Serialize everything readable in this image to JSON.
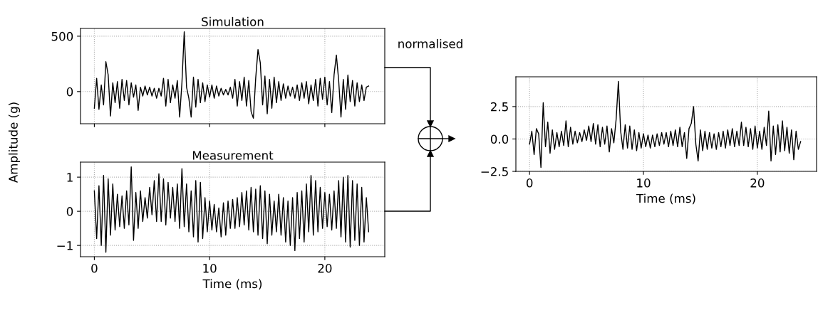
{
  "chart_data": [
    {
      "type": "line",
      "title": "Simulation",
      "ylabel": "Amplitude (g)",
      "annotations": [
        "normalised"
      ],
      "xlim": [
        -1.2,
        25.2
      ],
      "ylim": [
        -290,
        570
      ],
      "xticks": [
        0,
        10,
        20
      ],
      "yticks": [
        0,
        500
      ],
      "grid": true,
      "tick_labels": "y",
      "x": [
        0.0,
        0.2,
        0.4,
        0.6,
        0.8,
        1.0,
        1.2,
        1.4,
        1.6,
        1.8,
        2.0,
        2.2,
        2.4,
        2.6,
        2.8,
        3.0,
        3.2,
        3.4,
        3.6,
        3.8,
        4.0,
        4.2,
        4.4,
        4.6,
        4.8,
        5.0,
        5.2,
        5.4,
        5.6,
        5.8,
        6.0,
        6.2,
        6.4,
        6.6,
        6.8,
        7.0,
        7.2,
        7.4,
        7.6,
        7.8,
        8.0,
        8.2,
        8.4,
        8.6,
        8.8,
        9.0,
        9.2,
        9.4,
        9.6,
        9.8,
        10.0,
        10.2,
        10.4,
        10.6,
        10.8,
        11.0,
        11.2,
        11.4,
        11.6,
        11.8,
        12.0,
        12.2,
        12.4,
        12.6,
        12.8,
        13.0,
        13.2,
        13.4,
        13.6,
        13.8,
        14.0,
        14.2,
        14.4,
        14.6,
        14.8,
        15.0,
        15.2,
        15.4,
        15.6,
        15.8,
        16.0,
        16.2,
        16.4,
        16.6,
        16.8,
        17.0,
        17.2,
        17.4,
        17.6,
        17.8,
        18.0,
        18.2,
        18.4,
        18.6,
        18.8,
        19.0,
        19.2,
        19.4,
        19.6,
        19.8,
        20.0,
        20.2,
        20.4,
        20.6,
        20.8,
        21.0,
        21.2,
        21.4,
        21.6,
        21.8,
        22.0,
        22.2,
        22.4,
        22.6,
        22.8,
        23.0,
        23.2,
        23.4,
        23.6,
        23.8
      ],
      "series": [
        {
          "color": "#000000",
          "values": [
            -150,
            120,
            -160,
            60,
            -120,
            270,
            150,
            -220,
            80,
            -100,
            90,
            -150,
            110,
            -80,
            100,
            -120,
            80,
            -50,
            60,
            -170,
            40,
            -40,
            50,
            -30,
            40,
            -40,
            30,
            -60,
            30,
            -40,
            120,
            -130,
            110,
            -100,
            60,
            -60,
            100,
            -230,
            80,
            540,
            40,
            -60,
            -230,
            130,
            -140,
            110,
            -100,
            80,
            -90,
            60,
            -50,
            60,
            -60,
            50,
            -40,
            30,
            -30,
            20,
            -30,
            40,
            -60,
            110,
            -130,
            90,
            -80,
            130,
            -130,
            100,
            -180,
            -240,
            120,
            380,
            260,
            -120,
            140,
            -200,
            110,
            -150,
            130,
            -100,
            90,
            -80,
            70,
            -60,
            50,
            -40,
            40,
            -60,
            60,
            -80,
            80,
            -60,
            90,
            -110,
            60,
            -80,
            110,
            -130,
            120,
            -70,
            130,
            -120,
            90,
            -190,
            150,
            330,
            100,
            -230,
            110,
            -160,
            150,
            -90,
            100,
            -130,
            80,
            -90,
            60,
            -80,
            40,
            50
          ]
        }
      ]
    },
    {
      "type": "line",
      "title": "Measurement",
      "xlabel": "Time (ms)",
      "xlim": [
        -1.2,
        25.2
      ],
      "ylim": [
        -1.33,
        1.44
      ],
      "xticks": [
        0,
        10,
        20
      ],
      "yticks": [
        {
          "value": -1,
          "label": "−1"
        },
        0,
        1
      ],
      "grid": true,
      "x": [
        0.0,
        0.2,
        0.4,
        0.6,
        0.8,
        1.0,
        1.2,
        1.4,
        1.6,
        1.8,
        2.0,
        2.2,
        2.4,
        2.6,
        2.8,
        3.0,
        3.2,
        3.4,
        3.6,
        3.8,
        4.0,
        4.2,
        4.4,
        4.6,
        4.8,
        5.0,
        5.2,
        5.4,
        5.6,
        5.8,
        6.0,
        6.2,
        6.4,
        6.6,
        6.8,
        7.0,
        7.2,
        7.4,
        7.6,
        7.8,
        8.0,
        8.2,
        8.4,
        8.6,
        8.8,
        9.0,
        9.2,
        9.4,
        9.6,
        9.8,
        10.0,
        10.2,
        10.4,
        10.6,
        10.8,
        11.0,
        11.2,
        11.4,
        11.6,
        11.8,
        12.0,
        12.2,
        12.4,
        12.6,
        12.8,
        13.0,
        13.2,
        13.4,
        13.6,
        13.8,
        14.0,
        14.2,
        14.4,
        14.6,
        14.8,
        15.0,
        15.2,
        15.4,
        15.6,
        15.8,
        16.0,
        16.2,
        16.4,
        16.6,
        16.8,
        17.0,
        17.2,
        17.4,
        17.6,
        17.8,
        18.0,
        18.2,
        18.4,
        18.6,
        18.8,
        19.0,
        19.2,
        19.4,
        19.6,
        19.8,
        20.0,
        20.2,
        20.4,
        20.6,
        20.8,
        21.0,
        21.2,
        21.4,
        21.6,
        21.8,
        22.0,
        22.2,
        22.4,
        22.6,
        22.8,
        23.0,
        23.2,
        23.4,
        23.6,
        23.8
      ],
      "series": [
        {
          "color": "#000000",
          "values": [
            0.6,
            -0.8,
            0.75,
            -1.0,
            1.05,
            -1.2,
            0.95,
            -0.7,
            0.8,
            -0.55,
            0.5,
            -0.45,
            0.45,
            -0.5,
            0.6,
            -0.4,
            1.3,
            -0.85,
            0.55,
            -0.5,
            0.6,
            -0.3,
            0.4,
            -0.2,
            0.7,
            -0.1,
            0.9,
            -0.3,
            1.1,
            -0.3,
            0.95,
            -0.4,
            0.85,
            -0.2,
            0.7,
            -0.3,
            0.8,
            -0.5,
            1.25,
            -0.45,
            0.8,
            -0.6,
            0.6,
            -0.75,
            0.9,
            -0.9,
            0.85,
            -0.8,
            0.4,
            -0.6,
            0.3,
            -0.55,
            0.2,
            -0.6,
            0.1,
            -0.75,
            0.25,
            -0.7,
            0.3,
            -0.5,
            0.35,
            -0.5,
            0.4,
            -0.45,
            0.55,
            -0.4,
            0.6,
            -0.55,
            0.7,
            -0.6,
            0.65,
            -0.7,
            0.75,
            -0.8,
            0.6,
            -0.95,
            0.5,
            -0.7,
            0.3,
            -0.6,
            0.5,
            -0.7,
            0.4,
            -0.9,
            0.3,
            -1.0,
            0.4,
            -1.15,
            0.55,
            -0.8,
            0.6,
            -0.9,
            0.8,
            -0.6,
            1.05,
            -0.7,
            0.9,
            -0.6,
            0.7,
            -0.5,
            0.55,
            -0.45,
            0.5,
            -0.55,
            0.6,
            -0.5,
            0.9,
            -0.75,
            1.0,
            -0.9,
            1.05,
            -1.05,
            0.9,
            -0.85,
            0.8,
            -1.0,
            0.7,
            -0.9,
            0.4,
            -0.6
          ]
        }
      ]
    },
    {
      "type": "line",
      "xlabel": "Time (ms)",
      "xlim": [
        -1.2,
        25.2
      ],
      "ylim": [
        -2.5,
        4.8
      ],
      "xticks": [
        0,
        10,
        20
      ],
      "yticks": [
        {
          "value": -2.5,
          "label": "−2.5"
        },
        {
          "value": 0,
          "label": "0.0"
        },
        {
          "value": 2.5,
          "label": "2.5"
        }
      ],
      "grid": true,
      "x": [
        0.0,
        0.2,
        0.4,
        0.6,
        0.8,
        1.0,
        1.2,
        1.4,
        1.6,
        1.8,
        2.0,
        2.2,
        2.4,
        2.6,
        2.8,
        3.0,
        3.2,
        3.4,
        3.6,
        3.8,
        4.0,
        4.2,
        4.4,
        4.6,
        4.8,
        5.0,
        5.2,
        5.4,
        5.6,
        5.8,
        6.0,
        6.2,
        6.4,
        6.6,
        6.8,
        7.0,
        7.2,
        7.4,
        7.6,
        7.8,
        8.0,
        8.2,
        8.4,
        8.6,
        8.8,
        9.0,
        9.2,
        9.4,
        9.6,
        9.8,
        10.0,
        10.2,
        10.4,
        10.6,
        10.8,
        11.0,
        11.2,
        11.4,
        11.6,
        11.8,
        12.0,
        12.2,
        12.4,
        12.6,
        12.8,
        13.0,
        13.2,
        13.4,
        13.6,
        13.8,
        14.0,
        14.2,
        14.4,
        14.6,
        14.8,
        15.0,
        15.2,
        15.4,
        15.6,
        15.8,
        16.0,
        16.2,
        16.4,
        16.6,
        16.8,
        17.0,
        17.2,
        17.4,
        17.6,
        17.8,
        18.0,
        18.2,
        18.4,
        18.6,
        18.8,
        19.0,
        19.2,
        19.4,
        19.6,
        19.8,
        20.0,
        20.2,
        20.4,
        20.6,
        20.8,
        21.0,
        21.2,
        21.4,
        21.6,
        21.8,
        22.0,
        22.2,
        22.4,
        22.6,
        22.8,
        23.0,
        23.2,
        23.4,
        23.6,
        23.8
      ],
      "series": [
        {
          "color": "#000000",
          "values": [
            -0.4,
            0.6,
            -1.2,
            0.8,
            0.4,
            -2.2,
            2.8,
            -0.6,
            1.3,
            -1.1,
            0.7,
            -0.8,
            0.5,
            -0.6,
            0.6,
            -0.5,
            1.4,
            -0.6,
            0.9,
            -0.4,
            0.6,
            -0.3,
            0.5,
            -0.2,
            0.7,
            -0.1,
            1.0,
            -0.2,
            1.2,
            -0.4,
            1.1,
            -0.6,
            0.9,
            -0.4,
            1.0,
            -1.0,
            0.8,
            -0.3,
            1.5,
            4.45,
            0.6,
            -0.8,
            1.1,
            -0.7,
            1.0,
            -0.8,
            0.7,
            -0.9,
            0.5,
            -0.7,
            0.4,
            -0.6,
            0.3,
            -0.7,
            0.3,
            -0.6,
            0.4,
            -0.5,
            0.5,
            -0.4,
            0.5,
            -0.6,
            0.6,
            -0.5,
            0.7,
            -0.6,
            0.9,
            -0.6,
            0.5,
            -1.5,
            0.8,
            1.2,
            2.5,
            -0.4,
            -1.7,
            0.7,
            -0.9,
            0.6,
            -0.8,
            0.5,
            -0.7,
            0.4,
            -0.8,
            0.5,
            -0.6,
            0.6,
            -0.7,
            0.7,
            -0.5,
            0.8,
            -0.6,
            0.6,
            -0.5,
            1.3,
            -0.5,
            0.9,
            -0.6,
            0.8,
            -0.8,
            1.0,
            -0.7,
            0.6,
            -0.8,
            0.9,
            -0.5,
            2.15,
            -1.7,
            1.0,
            -1.2,
            1.1,
            -1.0,
            1.4,
            -0.9,
            0.9,
            -1.1,
            0.7,
            -1.6,
            0.6,
            -0.8,
            -0.2
          ]
        }
      ]
    }
  ]
}
